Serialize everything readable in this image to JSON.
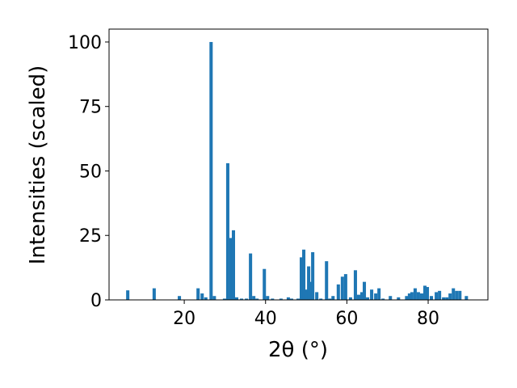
{
  "chart_data": {
    "type": "bar",
    "xlabel": "2θ (°)",
    "ylabel": "Intensities (scaled)",
    "color": "#1f77b4",
    "x": [
      6.1,
      12.6,
      18.8,
      23.4,
      24.4,
      25.3,
      26.6,
      27.4,
      29.9,
      30.7,
      31.5,
      32.1,
      32.9,
      34.1,
      35.3,
      36.3,
      37.1,
      37.9,
      39.7,
      40.5,
      41.7,
      43.8,
      45.6,
      46.4,
      48.0,
      48.8,
      49.4,
      50.0,
      50.6,
      51.0,
      51.6,
      52.6,
      53.6,
      55.0,
      55.8,
      56.6,
      57.9,
      58.9,
      59.7,
      60.9,
      62.1,
      62.9,
      63.7,
      64.3,
      65.1,
      66.1,
      67.1,
      67.9,
      68.9,
      70.7,
      72.7,
      74.7,
      75.4,
      76.0,
      76.8,
      77.6,
      78.4,
      79.2,
      79.8,
      80.8,
      82.0,
      82.8,
      83.8,
      84.6,
      85.4,
      86.2,
      87.0,
      87.8,
      89.4
    ],
    "values": [
      3.7,
      4.5,
      1.5,
      4.5,
      2.5,
      1,
      100,
      1.5,
      0.5,
      53,
      24,
      27,
      1,
      0.5,
      0.5,
      18,
      1.5,
      0.5,
      12,
      1.5,
      0.5,
      0.5,
      1,
      0.5,
      0.5,
      16.5,
      19.5,
      4,
      13,
      7,
      18.5,
      3,
      0.5,
      15,
      0.5,
      1.5,
      6,
      9,
      10,
      1,
      11.5,
      2,
      3,
      7,
      1,
      4,
      2.5,
      4.5,
      0.5,
      1.5,
      1,
      1.5,
      2.5,
      3,
      4.5,
      3,
      2.5,
      5.5,
      5,
      1.5,
      3,
      3.5,
      1,
      1,
      2.5,
      4.5,
      3.5,
      3.5,
      1.5
    ],
    "xlim": [
      1.5,
      94.7
    ],
    "ylim": [
      0,
      105
    ],
    "xticks": [
      20,
      40,
      60,
      80
    ],
    "yticks": [
      0,
      25,
      50,
      75,
      100
    ]
  }
}
